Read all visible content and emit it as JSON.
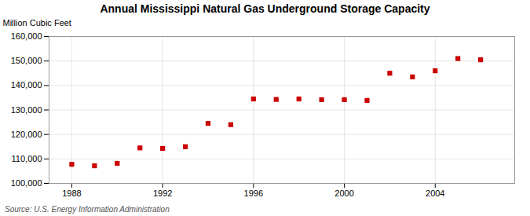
{
  "chart_data": {
    "type": "scatter",
    "title": "Annual Mississippi Natural Gas Underground Storage Capacity",
    "ylabel": "Million Cubic Feet",
    "source": "Source: U.S. Energy Information Administration",
    "x": [
      1988,
      1989,
      1990,
      1991,
      1992,
      1993,
      1994,
      1995,
      1996,
      1997,
      1998,
      1999,
      2000,
      2001,
      2002,
      2003,
      2004,
      2005,
      2006
    ],
    "values": [
      107800,
      107200,
      108200,
      114500,
      114300,
      115000,
      124500,
      124000,
      134500,
      134300,
      134500,
      134200,
      134200,
      133900,
      145000,
      143500,
      146000,
      151000,
      150500
    ],
    "color": "#cc0000",
    "marker": "square",
    "xlim": [
      1987,
      2007.5
    ],
    "xticks": [
      1988,
      1992,
      1996,
      2000,
      2004
    ],
    "ylim": [
      100000,
      160000
    ],
    "yticks": [
      {
        "value": 100000,
        "label": "100,000"
      },
      {
        "value": 110000,
        "label": "110,000"
      },
      {
        "value": 120000,
        "label": "120,000"
      },
      {
        "value": 130000,
        "label": "130,000"
      },
      {
        "value": 140000,
        "label": "140,000"
      },
      {
        "value": 150000,
        "label": "150,000"
      },
      {
        "value": 160000,
        "label": "160,000"
      }
    ],
    "grid": true
  }
}
